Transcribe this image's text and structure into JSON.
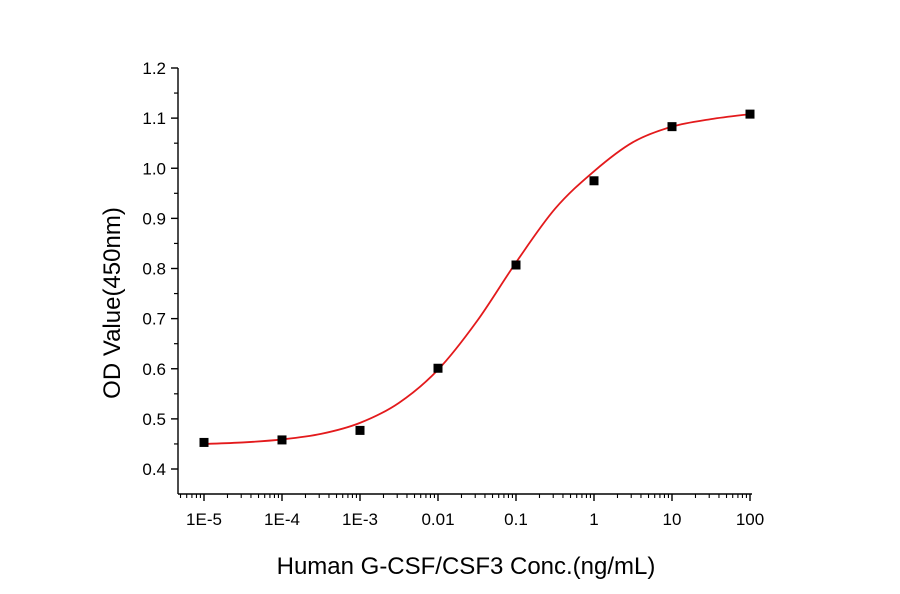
{
  "chart_data": {
    "type": "scatter",
    "title": "",
    "xlabel": "Human G-CSF/CSF3 Conc.(ng/mL)",
    "ylabel": "OD Value(450nm)",
    "x_scale": "log",
    "xlim": [
      1e-05,
      100
    ],
    "ylim": [
      0.4,
      1.2
    ],
    "x_tick_values": [
      1e-05,
      0.0001,
      0.001,
      0.01,
      0.1,
      1,
      10,
      100
    ],
    "x_tick_labels": [
      "1E-5",
      "1E-4",
      "1E-3",
      "0.01",
      "0.1",
      "1",
      "10",
      "100"
    ],
    "y_tick_values": [
      0.4,
      0.5,
      0.6,
      0.7,
      0.8,
      0.9,
      1.0,
      1.1,
      1.2
    ],
    "y_tick_labels": [
      "0.4",
      "0.5",
      "0.6",
      "0.7",
      "0.8",
      "0.9",
      "1.0",
      "1.1",
      "1.2"
    ],
    "grid": false,
    "series": [
      {
        "type": "scatter",
        "marker": "square",
        "color": "#000000",
        "x": [
          1e-05,
          0.0001,
          0.001,
          0.01,
          0.1,
          1,
          10,
          100
        ],
        "y": [
          0.453,
          0.458,
          0.477,
          0.601,
          0.807,
          0.975,
          1.083,
          1.108
        ]
      },
      {
        "type": "line",
        "color": "#e31a1c",
        "x": [
          1e-05,
          3.16e-05,
          0.0001,
          0.000316,
          0.001,
          0.00316,
          0.01,
          0.0316,
          0.1,
          0.316,
          1,
          3.16,
          10,
          31.6,
          100
        ],
        "y": [
          0.45,
          0.453,
          0.459,
          0.47,
          0.492,
          0.532,
          0.598,
          0.695,
          0.812,
          0.919,
          0.994,
          1.052,
          1.083,
          1.098,
          1.108
        ]
      }
    ]
  }
}
